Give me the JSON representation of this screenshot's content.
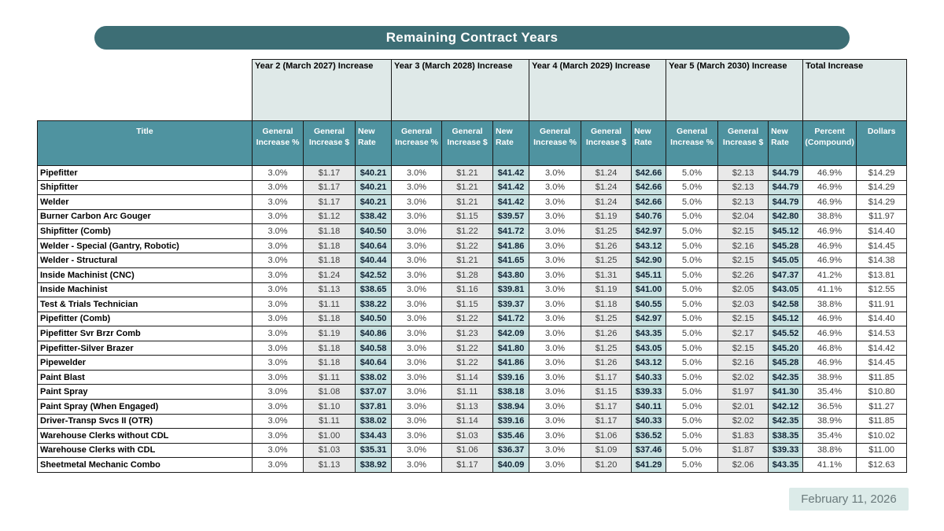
{
  "title_bar": {
    "text": "Remaining Contract Years"
  },
  "table": {
    "year_groups": [
      "Year 2 (March 2027) Increase",
      "Year 3 (March 2028) Increase",
      "Year 4 (March 2029) Increase",
      "Year 5 (March 2030) Increase"
    ],
    "total_group": "Total Increase",
    "columns": {
      "title": "Title",
      "general_increase_pct": "General Increase %",
      "general_increase_usd": "General Increase $",
      "new_rate": "New Rate",
      "percent_compound": "Percent (Compound)",
      "dollars": "Dollars"
    },
    "rows": [
      {
        "title": "Pipefitter",
        "cells": [
          "3.0%",
          "$1.17",
          "$40.21",
          "3.0%",
          "$1.21",
          "$41.42",
          "3.0%",
          "$1.24",
          "$42.66",
          "5.0%",
          "$2.13",
          "$44.79",
          "46.9%",
          "$14.29"
        ]
      },
      {
        "title": "Shipfitter",
        "cells": [
          "3.0%",
          "$1.17",
          "$40.21",
          "3.0%",
          "$1.21",
          "$41.42",
          "3.0%",
          "$1.24",
          "$42.66",
          "5.0%",
          "$2.13",
          "$44.79",
          "46.9%",
          "$14.29"
        ]
      },
      {
        "title": "Welder",
        "cells": [
          "3.0%",
          "$1.17",
          "$40.21",
          "3.0%",
          "$1.21",
          "$41.42",
          "3.0%",
          "$1.24",
          "$42.66",
          "5.0%",
          "$2.13",
          "$44.79",
          "46.9%",
          "$14.29"
        ]
      },
      {
        "title": "Burner Carbon Arc Gouger",
        "cells": [
          "3.0%",
          "$1.12",
          "$38.42",
          "3.0%",
          "$1.15",
          "$39.57",
          "3.0%",
          "$1.19",
          "$40.76",
          "5.0%",
          "$2.04",
          "$42.80",
          "38.8%",
          "$11.97"
        ]
      },
      {
        "title": "Shipfitter (Comb)",
        "cells": [
          "3.0%",
          "$1.18",
          "$40.50",
          "3.0%",
          "$1.22",
          "$41.72",
          "3.0%",
          "$1.25",
          "$42.97",
          "5.0%",
          "$2.15",
          "$45.12",
          "46.9%",
          "$14.40"
        ]
      },
      {
        "title": "Welder - Special (Gantry, Robotic)",
        "cells": [
          "3.0%",
          "$1.18",
          "$40.64",
          "3.0%",
          "$1.22",
          "$41.86",
          "3.0%",
          "$1.26",
          "$43.12",
          "5.0%",
          "$2.16",
          "$45.28",
          "46.9%",
          "$14.45"
        ]
      },
      {
        "title": "Welder - Structural",
        "cells": [
          "3.0%",
          "$1.18",
          "$40.44",
          "3.0%",
          "$1.21",
          "$41.65",
          "3.0%",
          "$1.25",
          "$42.90",
          "5.0%",
          "$2.15",
          "$45.05",
          "46.9%",
          "$14.38"
        ]
      },
      {
        "title": "Inside Machinist (CNC)",
        "cells": [
          "3.0%",
          "$1.24",
          "$42.52",
          "3.0%",
          "$1.28",
          "$43.80",
          "3.0%",
          "$1.31",
          "$45.11",
          "5.0%",
          "$2.26",
          "$47.37",
          "41.2%",
          "$13.81"
        ]
      },
      {
        "title": "Inside Machinist",
        "cells": [
          "3.0%",
          "$1.13",
          "$38.65",
          "3.0%",
          "$1.16",
          "$39.81",
          "3.0%",
          "$1.19",
          "$41.00",
          "5.0%",
          "$2.05",
          "$43.05",
          "41.1%",
          "$12.55"
        ]
      },
      {
        "title": "Test & Trials Technician",
        "cells": [
          "3.0%",
          "$1.11",
          "$38.22",
          "3.0%",
          "$1.15",
          "$39.37",
          "3.0%",
          "$1.18",
          "$40.55",
          "5.0%",
          "$2.03",
          "$42.58",
          "38.8%",
          "$11.91"
        ]
      },
      {
        "title": "Pipefitter (Comb)",
        "cells": [
          "3.0%",
          "$1.18",
          "$40.50",
          "3.0%",
          "$1.22",
          "$41.72",
          "3.0%",
          "$1.25",
          "$42.97",
          "5.0%",
          "$2.15",
          "$45.12",
          "46.9%",
          "$14.40"
        ]
      },
      {
        "title": "Pipefitter Svr Brzr Comb",
        "cells": [
          "3.0%",
          "$1.19",
          "$40.86",
          "3.0%",
          "$1.23",
          "$42.09",
          "3.0%",
          "$1.26",
          "$43.35",
          "5.0%",
          "$2.17",
          "$45.52",
          "46.9%",
          "$14.53"
        ]
      },
      {
        "title": "Pipefitter-Silver Brazer",
        "cells": [
          "3.0%",
          "$1.18",
          "$40.58",
          "3.0%",
          "$1.22",
          "$41.80",
          "3.0%",
          "$1.25",
          "$43.05",
          "5.0%",
          "$2.15",
          "$45.20",
          "46.8%",
          "$14.42"
        ]
      },
      {
        "title": "Pipewelder",
        "cells": [
          "3.0%",
          "$1.18",
          "$40.64",
          "3.0%",
          "$1.22",
          "$41.86",
          "3.0%",
          "$1.26",
          "$43.12",
          "5.0%",
          "$2.16",
          "$45.28",
          "46.9%",
          "$14.45"
        ]
      },
      {
        "title": "Paint Blast",
        "cells": [
          "3.0%",
          "$1.11",
          "$38.02",
          "3.0%",
          "$1.14",
          "$39.16",
          "3.0%",
          "$1.17",
          "$40.33",
          "5.0%",
          "$2.02",
          "$42.35",
          "38.9%",
          "$11.85"
        ]
      },
      {
        "title": "Paint Spray",
        "cells": [
          "3.0%",
          "$1.08",
          "$37.07",
          "3.0%",
          "$1.11",
          "$38.18",
          "3.0%",
          "$1.15",
          "$39.33",
          "5.0%",
          "$1.97",
          "$41.30",
          "35.4%",
          "$10.80"
        ]
      },
      {
        "title": "Paint Spray (When Engaged)",
        "cells": [
          "3.0%",
          "$1.10",
          "$37.81",
          "3.0%",
          "$1.13",
          "$38.94",
          "3.0%",
          "$1.17",
          "$40.11",
          "5.0%",
          "$2.01",
          "$42.12",
          "36.5%",
          "$11.27"
        ]
      },
      {
        "title": "Driver-Transp Svcs II (OTR)",
        "cells": [
          "3.0%",
          "$1.11",
          "$38.02",
          "3.0%",
          "$1.14",
          "$39.16",
          "3.0%",
          "$1.17",
          "$40.33",
          "5.0%",
          "$2.02",
          "$42.35",
          "38.9%",
          "$11.85"
        ]
      },
      {
        "title": "Warehouse Clerks without CDL",
        "cells": [
          "3.0%",
          "$1.00",
          "$34.43",
          "3.0%",
          "$1.03",
          "$35.46",
          "3.0%",
          "$1.06",
          "$36.52",
          "5.0%",
          "$1.83",
          "$38.35",
          "35.4%",
          "$10.02"
        ]
      },
      {
        "title": "Warehouse Clerks with CDL",
        "cells": [
          "3.0%",
          "$1.03",
          "$35.31",
          "3.0%",
          "$1.06",
          "$36.37",
          "3.0%",
          "$1.09",
          "$37.46",
          "5.0%",
          "$1.87",
          "$39.33",
          "38.8%",
          "$11.00"
        ]
      },
      {
        "title": "Sheetmetal Mechanic Combo",
        "cells": [
          "3.0%",
          "$1.13",
          "$38.92",
          "3.0%",
          "$1.17",
          "$40.09",
          "3.0%",
          "$1.20",
          "$41.29",
          "5.0%",
          "$2.06",
          "$43.35",
          "41.1%",
          "$12.63"
        ]
      }
    ]
  },
  "footer": {
    "date": "February 11, 2026"
  },
  "colors": {
    "title_bar_bg": "#3d6e75",
    "header_bg": "#4f93a0",
    "band_bg": "#dfe9e8",
    "rate_cell_bg": "#c9e2e2",
    "usd_cell_bg": "#e9e9e9",
    "date_box_bg": "#dcebe9"
  }
}
